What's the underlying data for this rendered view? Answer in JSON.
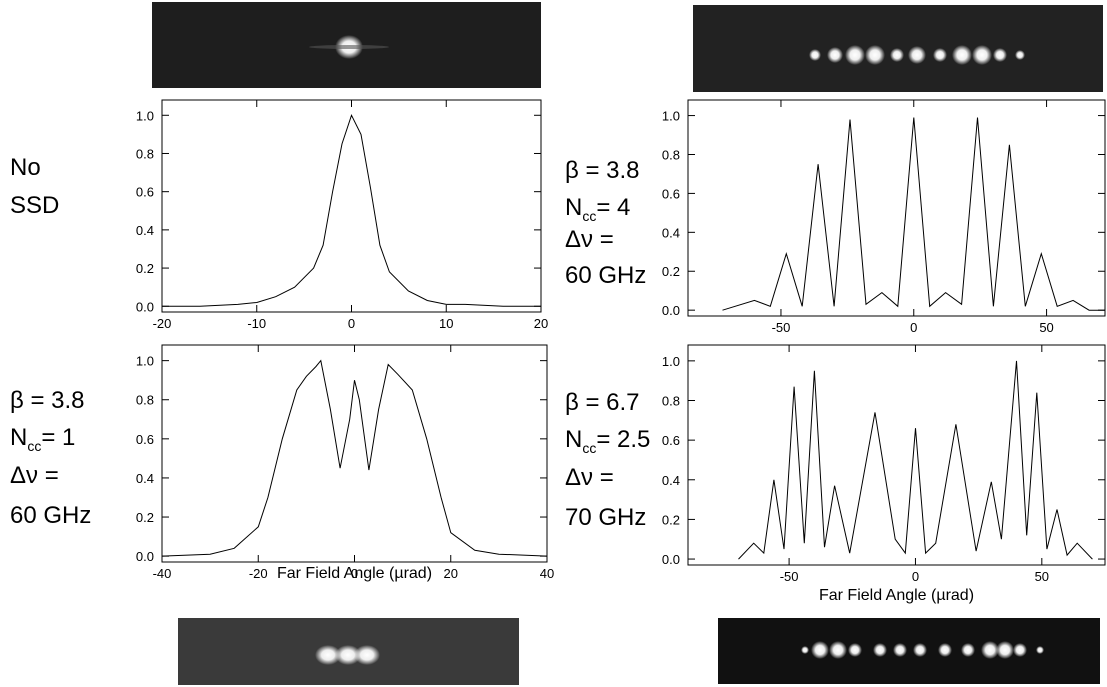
{
  "chart_data": [
    {
      "type": "line",
      "annotation": [
        "No",
        "SSD"
      ],
      "x": [
        -20,
        -16,
        -12,
        -10,
        -8,
        -6,
        -4,
        -3,
        -2,
        -1,
        0,
        1,
        2,
        3,
        4,
        6,
        8,
        10,
        12,
        16,
        20
      ],
      "series": [
        {
          "color": "#000000",
          "values": [
            0,
            0,
            0.01,
            0.02,
            0.05,
            0.1,
            0.2,
            0.32,
            0.6,
            0.85,
            1.0,
            0.9,
            0.62,
            0.32,
            0.18,
            0.08,
            0.03,
            0.01,
            0.01,
            0,
            0
          ]
        }
      ],
      "xlim": [
        -20,
        20
      ],
      "xticks": [
        -20,
        -10,
        0,
        10,
        20
      ],
      "ylim": [
        -0.03,
        1.08
      ],
      "yticks": [
        {
          "value": 0,
          "label": "0.0"
        },
        0.2,
        0.4,
        0.6,
        0.8,
        {
          "value": 1,
          "label": "1.0"
        }
      ]
    },
    {
      "type": "line",
      "annotation": [
        "β = 3.8",
        {
          "text": "N",
          "sub": "cc",
          "rest": "= 1"
        },
        "Δν =",
        "60 GHz"
      ],
      "xlabel": "Far Field Angle (µrad)",
      "x": [
        -40,
        -30,
        -25,
        -20,
        -18,
        -15,
        -12,
        -10,
        -8,
        -7,
        -5,
        -3,
        -1,
        0,
        1,
        3,
        5,
        7,
        9,
        12,
        15,
        18,
        20,
        25,
        30,
        40
      ],
      "series": [
        {
          "color": "#000000",
          "values": [
            0,
            0.01,
            0.04,
            0.15,
            0.3,
            0.6,
            0.85,
            0.92,
            0.97,
            1.0,
            0.75,
            0.45,
            0.7,
            0.9,
            0.8,
            0.44,
            0.75,
            0.98,
            0.93,
            0.85,
            0.6,
            0.3,
            0.12,
            0.03,
            0.01,
            0
          ]
        }
      ],
      "xlim": [
        -40,
        40
      ],
      "xticks": [
        -40,
        -20,
        0,
        20,
        40
      ],
      "ylim": [
        -0.03,
        1.08
      ],
      "yticks": [
        {
          "value": 0,
          "label": "0.0"
        },
        0.2,
        0.4,
        0.6,
        0.8,
        {
          "value": 1,
          "label": "1.0"
        }
      ]
    },
    {
      "type": "line",
      "annotation": [
        "β = 3.8",
        {
          "text": "N",
          "sub": "cc",
          "rest": "= 4"
        },
        "Δν =",
        "60 GHz"
      ],
      "x": [
        -72,
        -60,
        -54,
        -48,
        -42,
        -36,
        -30,
        -24,
        -18,
        -12,
        -6,
        0,
        6,
        12,
        18,
        24,
        30,
        36,
        42,
        48,
        54,
        60,
        66,
        72
      ],
      "series": [
        {
          "color": "#000000",
          "values": [
            0,
            0.05,
            0.02,
            0.29,
            0.02,
            0.75,
            0.02,
            0.98,
            0.03,
            0.09,
            0.02,
            0.99,
            0.02,
            0.09,
            0.03,
            0.99,
            0.02,
            0.85,
            0.02,
            0.29,
            0.02,
            0.05,
            0,
            0
          ]
        }
      ],
      "xlim": [
        -85,
        72
      ],
      "xticks": [
        -50,
        0,
        50
      ],
      "ylim": [
        -0.03,
        1.08
      ],
      "yticks": [
        {
          "value": 0,
          "label": "0.0"
        },
        0.2,
        0.4,
        0.6,
        0.8,
        {
          "value": 1,
          "label": "1.0"
        }
      ]
    },
    {
      "type": "line",
      "annotation": [
        "β = 6.7",
        {
          "text": "N",
          "sub": "cc",
          "rest": "= 2.5"
        },
        "Δν =",
        "70 GHz"
      ],
      "xlabel": "Far Field Angle (µrad)",
      "x": [
        -70,
        -64,
        -60,
        -56,
        -52,
        -48,
        -44,
        -40,
        -36,
        -32,
        -26,
        -16,
        -8,
        -4,
        0,
        4,
        8,
        16,
        24,
        30,
        34,
        40,
        44,
        48,
        52,
        56,
        60,
        64,
        70
      ],
      "series": [
        {
          "color": "#000000",
          "values": [
            0,
            0.08,
            0.03,
            0.4,
            0.05,
            0.87,
            0.08,
            0.95,
            0.06,
            0.37,
            0.03,
            0.74,
            0.1,
            0.03,
            0.66,
            0.03,
            0.08,
            0.68,
            0.04,
            0.39,
            0.1,
            1.0,
            0.12,
            0.84,
            0.05,
            0.25,
            0.02,
            0.08,
            0
          ]
        }
      ],
      "xlim": [
        -90,
        75
      ],
      "xticks": [
        -50,
        0,
        50
      ],
      "ylim": [
        -0.03,
        1.08
      ],
      "yticks": [
        {
          "value": 0,
          "label": "0.0"
        },
        0.2,
        0.4,
        0.6,
        0.8,
        {
          "value": 1,
          "label": "1.0"
        }
      ]
    }
  ]
}
